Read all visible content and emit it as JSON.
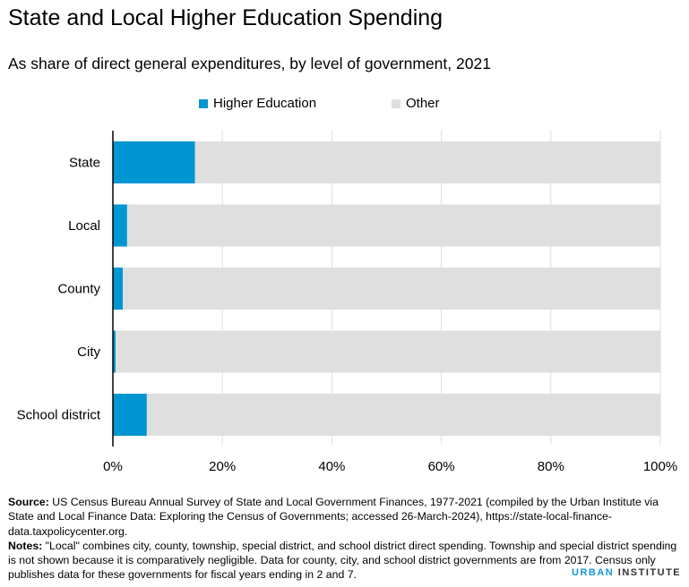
{
  "chart_data": {
    "type": "bar",
    "orientation": "horizontal",
    "stacked": true,
    "title": "State and Local Higher Education Spending",
    "subtitle": "As share of direct general expenditures, by level of government, 2021",
    "categories": [
      "State",
      "Local",
      "County",
      "City",
      "School district"
    ],
    "series": [
      {
        "name": "Higher Education",
        "color": "#0096d2",
        "values": [
          15.0,
          2.6,
          1.8,
          0.5,
          6.2
        ]
      },
      {
        "name": "Other",
        "color": "#dfdfdf",
        "values": [
          85.0,
          97.4,
          98.2,
          99.5,
          93.8
        ]
      }
    ],
    "xlim": [
      0,
      100
    ],
    "xticks": [
      "0%",
      "20%",
      "40%",
      "60%",
      "80%",
      "100%"
    ],
    "grid": true,
    "legend": "top"
  },
  "notes": {
    "source_label": "Source:",
    "source_text": " US Census Bureau Annual Survey of State and Local Government Finances, 1977-2021 (compiled by the Urban Institute via State and Local Finance Data: Exploring the Census of Governments; accessed 26-March-2024), https://state-local-finance-data.taxpolicycenter.org.",
    "notes_label": "Notes:",
    "notes_text": " \"Local\" combines city, county, township, special district, and school district direct spending. Township and special district spending is not shown because it is comparatively negligible. Data for county, city, and school district governments are from 2017. Census only publishes data for these governments for fiscal years ending in 2 and 7."
  },
  "logo": {
    "part1": "URBAN",
    "part2": "INSTITUTE",
    "color1": "#1696d2",
    "color2": "#333333"
  }
}
